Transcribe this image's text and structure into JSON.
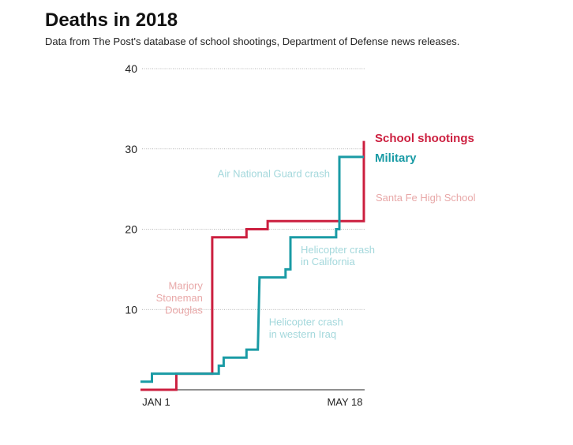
{
  "title": "Deaths in 2018",
  "subtitle": "Data from The Post's database of school shootings, Department of Defense news releases.",
  "colors": {
    "school": "#cc1f3f",
    "military": "#1a9ba5",
    "school_annotation": "#e8a8a8",
    "military_annotation": "#a4d8dc",
    "grid": "#999999",
    "axis": "#222222",
    "tick_text": "#222222"
  },
  "chart_data": {
    "type": "line",
    "title": "Deaths in 2018",
    "subtitle": "Data from The Post's database of school shootings, Department of Defense news releases.",
    "xlabel": "",
    "ylabel": "",
    "ylim": [
      0,
      40
    ],
    "yticks": [
      10,
      20,
      30,
      40
    ],
    "x_tick_labels": [
      "JAN 1",
      "MAY 18"
    ],
    "grid": true,
    "series": [
      {
        "name": "School shootings",
        "color": "#cc1f3f",
        "points": [
          {
            "x": "Jan 1",
            "y": 0
          },
          {
            "x": "Jan 23",
            "y": 0
          },
          {
            "x": "Jan 23",
            "y": 2
          },
          {
            "x": "Feb 14",
            "y": 2
          },
          {
            "x": "Feb 14",
            "y": 19
          },
          {
            "x": "Mar 7",
            "y": 19
          },
          {
            "x": "Mar 7",
            "y": 20
          },
          {
            "x": "Mar 20",
            "y": 20
          },
          {
            "x": "Mar 20",
            "y": 21
          },
          {
            "x": "May 18",
            "y": 21
          },
          {
            "x": "May 18",
            "y": 31
          }
        ]
      },
      {
        "name": "Military",
        "color": "#1a9ba5",
        "points": [
          {
            "x": "Jan 1",
            "y": 1
          },
          {
            "x": "Jan 8",
            "y": 1
          },
          {
            "x": "Jan 8",
            "y": 2
          },
          {
            "x": "Feb 18",
            "y": 2
          },
          {
            "x": "Feb 18",
            "y": 3
          },
          {
            "x": "Feb 21",
            "y": 3
          },
          {
            "x": "Feb 21",
            "y": 4
          },
          {
            "x": "Mar 7",
            "y": 4
          },
          {
            "x": "Mar 7",
            "y": 5
          },
          {
            "x": "Mar 14",
            "y": 5
          },
          {
            "x": "Mar 15",
            "y": 14
          },
          {
            "x": "Mar 31",
            "y": 14
          },
          {
            "x": "Mar 31",
            "y": 15
          },
          {
            "x": "Apr 3",
            "y": 15
          },
          {
            "x": "Apr 3",
            "y": 19
          },
          {
            "x": "May 1",
            "y": 19
          },
          {
            "x": "May 1",
            "y": 20
          },
          {
            "x": "May 3",
            "y": 20
          },
          {
            "x": "May 3",
            "y": 29
          },
          {
            "x": "May 18",
            "y": 29
          }
        ]
      }
    ],
    "annotations": [
      {
        "text": "Marjory",
        "series": "School shootings",
        "x": "Feb 14",
        "y": 13
      },
      {
        "text": "Stoneman",
        "series": "School shootings",
        "x": "Feb 14",
        "y": 11.5
      },
      {
        "text": "Douglas",
        "series": "School shootings",
        "x": "Feb 14",
        "y": 10
      },
      {
        "text": "Air National Guard crash",
        "series": "Military",
        "x": "May 3",
        "y": 27
      },
      {
        "text": "Santa Fe High School",
        "series": "School shootings",
        "x": "May 18",
        "y": 24
      },
      {
        "text": "Helicopter crash",
        "series": "Military",
        "x": "Apr 3",
        "y": 17.5
      },
      {
        "text": "in California",
        "series": "Military",
        "x": "Apr 3",
        "y": 16
      },
      {
        "text": "Helicopter crash",
        "series": "Military",
        "x": "Mar 15",
        "y": 8.5
      },
      {
        "text": "in western Iraq",
        "series": "Military",
        "x": "Mar 15",
        "y": 7
      }
    ]
  }
}
